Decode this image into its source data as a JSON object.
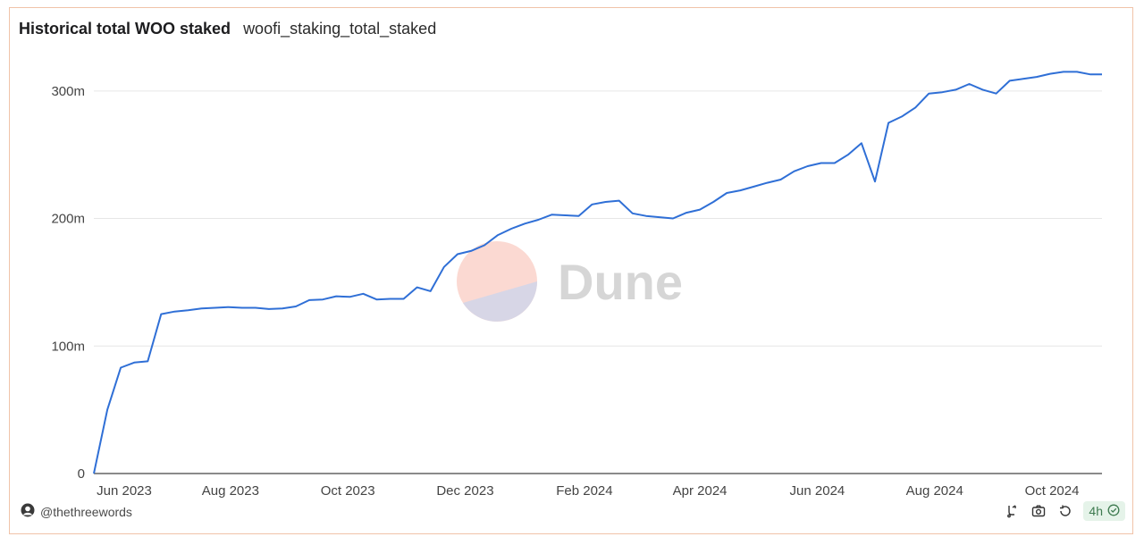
{
  "header": {
    "title": "Historical total WOO staked",
    "subtitle": "woofi_staking_total_staked"
  },
  "watermark": {
    "text": "Dune",
    "colors": {
      "top": "#fbd9d2",
      "bottom": "#d7d6e6",
      "text": "#d6d6d6"
    }
  },
  "footer": {
    "author": "@thethreewords",
    "refresh_label": "4h",
    "icons": [
      "user-avatar-icon",
      "fork-icon",
      "camera-icon",
      "refresh-icon",
      "check-circle-icon"
    ]
  },
  "colors": {
    "line": "#2f6fd6",
    "grid": "#e6e6e6",
    "axis": "#444444",
    "card_border": "#f0c3a8"
  },
  "chart_data": {
    "type": "line",
    "title": "Historical total WOO staked",
    "xlabel": "",
    "ylabel": "",
    "grid": true,
    "legend": "none",
    "x_ticks": [
      "Jun 2023",
      "Aug 2023",
      "Oct 2023",
      "Dec 2023",
      "Feb 2024",
      "Apr 2024",
      "Jun 2024",
      "Aug 2024",
      "Oct 2024"
    ],
    "y_ticks": [
      {
        "value": 0,
        "label": "0"
      },
      {
        "value": 100000000,
        "label": "100m"
      },
      {
        "value": 200000000,
        "label": "200m"
      },
      {
        "value": 300000000,
        "label": "300m"
      }
    ],
    "xlim": [
      "2023-05-22",
      "2024-10-27"
    ],
    "ylim": [
      0,
      330000000
    ],
    "series": [
      {
        "x": [
          "2023-05-22",
          "2023-05-29",
          "2023-06-05",
          "2023-06-12",
          "2023-06-19",
          "2023-06-26",
          "2023-07-03",
          "2023-07-10",
          "2023-07-17",
          "2023-07-24",
          "2023-07-31",
          "2023-08-07",
          "2023-08-14",
          "2023-08-21",
          "2023-08-28",
          "2023-09-04",
          "2023-09-11",
          "2023-09-18",
          "2023-09-25",
          "2023-10-02",
          "2023-10-09",
          "2023-10-16",
          "2023-10-23",
          "2023-10-30",
          "2023-11-06",
          "2023-11-13",
          "2023-11-20",
          "2023-11-27",
          "2023-12-04",
          "2023-12-11",
          "2023-12-18",
          "2023-12-25",
          "2024-01-01",
          "2024-01-08",
          "2024-01-15",
          "2024-01-22",
          "2024-01-29",
          "2024-02-05",
          "2024-02-12",
          "2024-02-19",
          "2024-02-26",
          "2024-03-04",
          "2024-03-11",
          "2024-03-18",
          "2024-03-25",
          "2024-04-01",
          "2024-04-08",
          "2024-04-15",
          "2024-04-22",
          "2024-04-29",
          "2024-05-06",
          "2024-05-13",
          "2024-05-20",
          "2024-05-27",
          "2024-06-03",
          "2024-06-10",
          "2024-06-17",
          "2024-06-24",
          "2024-07-01",
          "2024-07-08",
          "2024-07-15",
          "2024-07-22",
          "2024-07-29",
          "2024-08-05",
          "2024-08-12",
          "2024-08-19",
          "2024-08-26",
          "2024-09-02",
          "2024-09-09",
          "2024-09-16",
          "2024-09-23",
          "2024-09-30",
          "2024-10-07",
          "2024-10-14",
          "2024-10-21",
          "2024-10-27"
        ],
        "values": [
          0,
          50000000,
          83000000,
          87000000,
          88000000,
          125000000,
          127000000,
          128000000,
          129500000,
          130000000,
          130500000,
          130000000,
          130000000,
          129000000,
          129500000,
          131000000,
          136000000,
          136500000,
          139000000,
          138500000,
          141000000,
          136500000,
          137000000,
          137000000,
          146000000,
          143000000,
          162000000,
          172000000,
          174500000,
          179000000,
          187000000,
          192000000,
          196000000,
          199000000,
          203000000,
          202500000,
          202000000,
          211000000,
          213000000,
          214000000,
          204000000,
          202000000,
          201000000,
          200000000,
          204500000,
          207000000,
          213000000,
          220000000,
          222000000,
          225000000,
          228000000,
          230500000,
          237000000,
          241000000,
          243500000,
          243500000,
          250000000,
          259000000,
          229000000,
          275000000,
          280000000,
          287000000,
          298000000,
          299000000,
          301000000,
          305500000,
          301000000,
          298000000,
          308000000,
          309500000,
          311000000,
          313500000,
          315000000,
          315000000,
          313000000,
          313000000
        ]
      }
    ]
  }
}
